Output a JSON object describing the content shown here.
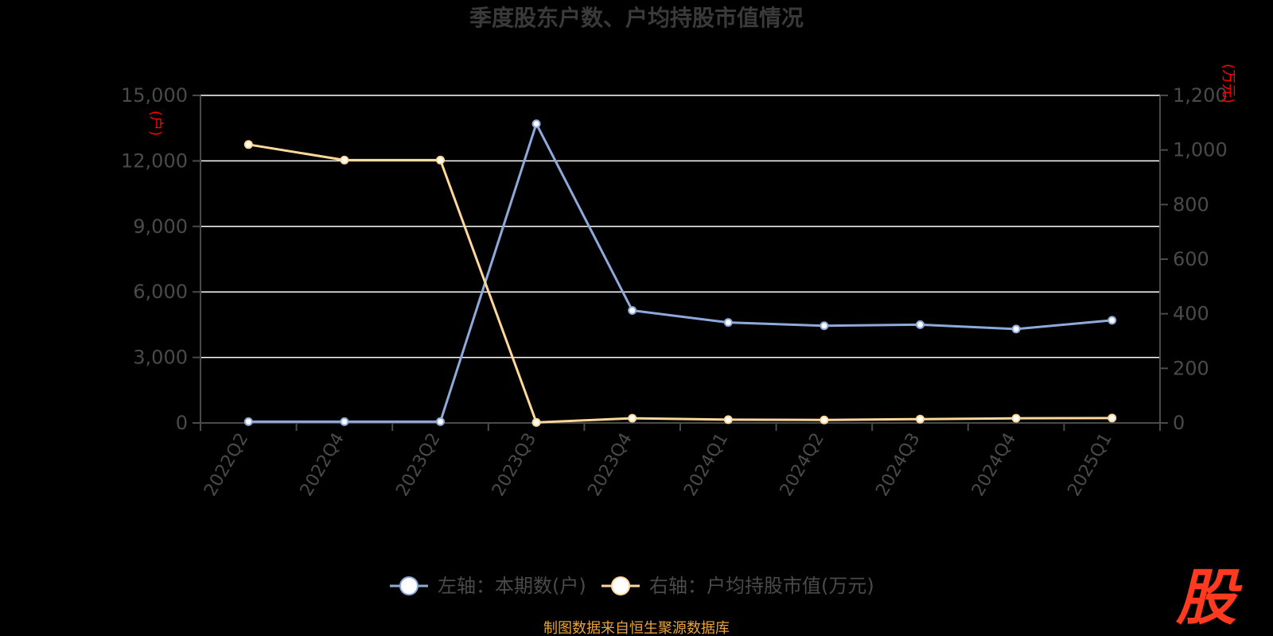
{
  "chart_data": {
    "type": "line",
    "title": "季度股东户数、户均持股市值情况",
    "categories": [
      "2022Q2",
      "2022Q4",
      "2023Q2",
      "2023Q3",
      "2023Q4",
      "2024Q1",
      "2024Q2",
      "2024Q3",
      "2024Q4",
      "2025Q1"
    ],
    "left_axis": {
      "unit": "(户)",
      "ylim": [
        0,
        15000
      ],
      "ticks": [
        "0",
        "3,000",
        "6,000",
        "9,000",
        "12,000",
        "15,000"
      ]
    },
    "right_axis": {
      "unit": "(万元)",
      "ylim": [
        0,
        1200
      ],
      "ticks": [
        "0",
        "200",
        "400",
        "600",
        "800",
        "1,000",
        "1,200"
      ]
    },
    "series": [
      {
        "name": "左轴：本期数(户)",
        "axis": "left",
        "color": "#8eaadb",
        "values": [
          60,
          60,
          60,
          13700,
          5150,
          4600,
          4450,
          4500,
          4300,
          4700
        ]
      },
      {
        "name": "右轴：户均持股市值(万元)",
        "axis": "right",
        "color": "#ffd99a",
        "values": [
          1020,
          963,
          963,
          2,
          17,
          12,
          11,
          14,
          17,
          18
        ]
      }
    ],
    "grid": true,
    "legend": "bottom"
  },
  "footer": {
    "source": "制图数据来自恒生聚源数据库"
  },
  "logo": {
    "text": "股"
  },
  "colors": {
    "background": "#000000",
    "grid": "#ffffff",
    "axis": "#4a4a4a",
    "unit": "#ff0000",
    "source": "#e8a33d",
    "logo": "#ff3b1f"
  }
}
